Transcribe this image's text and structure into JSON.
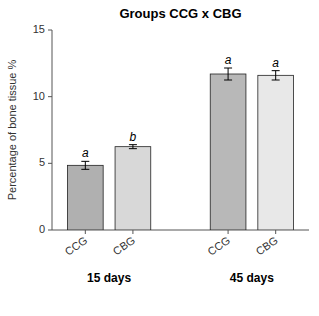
{
  "chart_data": {
    "type": "bar",
    "title": "Groups CCG x CBG",
    "ylabel": "Percentage of bone tissue %",
    "categories": [
      "CCG",
      "CBG",
      "CCG",
      "CBG"
    ],
    "groups": [
      "15 days",
      "15 days",
      "45 days",
      "45 days"
    ],
    "values": [
      4.85,
      6.25,
      11.7,
      11.6
    ],
    "errors": [
      0.3,
      0.15,
      0.45,
      0.35
    ],
    "annotations": [
      "a",
      "b",
      "a",
      "a"
    ],
    "colors": [
      "#b0b0b0",
      "#d8d8d8",
      "#b8b8b8",
      "#e8e8e8"
    ],
    "ylim": [
      0,
      15
    ],
    "yticks": [
      0,
      5,
      10,
      15
    ]
  }
}
